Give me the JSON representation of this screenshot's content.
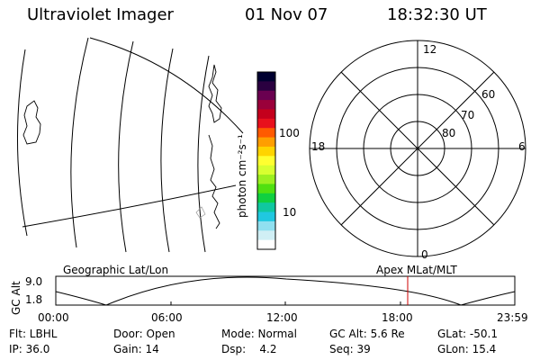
{
  "header": {
    "instrument": "Ultraviolet Imager",
    "date": "01 Nov 07",
    "time": "18:32:30 UT"
  },
  "map": {
    "title": "Geographic Lat/Lon"
  },
  "colorbar": {
    "unit_label": "photon cm⁻²s⁻¹",
    "ticks": [
      "100",
      "10"
    ],
    "colors": [
      "#000030",
      "#2a0040",
      "#6a0050",
      "#9a003a",
      "#c4001c",
      "#e8101c",
      "#ff5a00",
      "#ff9e00",
      "#ffd400",
      "#ffff30",
      "#d8ff30",
      "#9cf020",
      "#50e010",
      "#10d040",
      "#10c8a0",
      "#20c8e0",
      "#90e0f0",
      "#d0eff5",
      "#ffffff"
    ]
  },
  "polar": {
    "title": "Apex MLat/MLT",
    "mlt_labels": {
      "top": "12",
      "bottom": "0",
      "left": "18",
      "right": "6"
    },
    "lat_labels": [
      "60",
      "70",
      "80"
    ]
  },
  "timeline": {
    "axis_label": "GC Alt",
    "y_max": "9.0",
    "y_min": "1.8",
    "ticks": [
      "00:00",
      "06:00",
      "12:00",
      "18:00",
      "23:59"
    ],
    "marker_color": "#cc0000"
  },
  "info": {
    "row1": [
      "Flt: LBHL",
      "Door: Open",
      "Mode: Normal",
      "GC Alt: 5.6 Re",
      "GLat: -50.1"
    ],
    "row2": [
      "IP: 36.0",
      "Gain: 14",
      "Dsp:    4.2",
      "Seq: 39",
      "GLon: 15.4"
    ]
  }
}
